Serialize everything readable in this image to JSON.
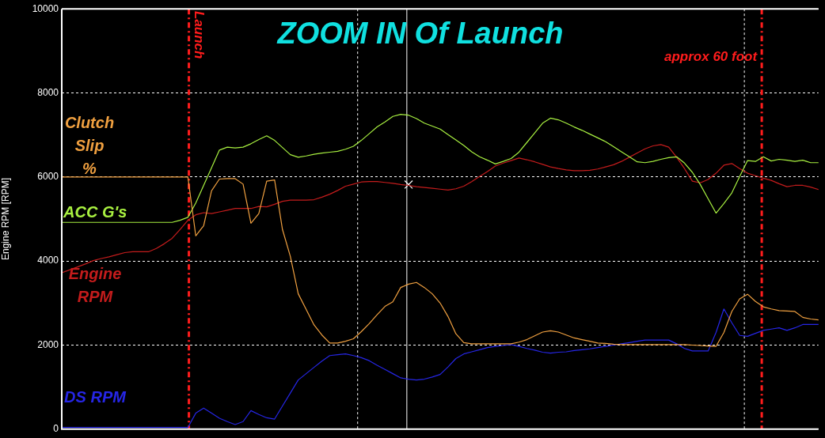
{
  "chart_data": {
    "type": "line",
    "title": "ZOOM IN Of Launch",
    "ylabel": "Engine RPM [RPM]",
    "categories": [
      null,
      null,
      null,
      null,
      null,
      null,
      null,
      null,
      null,
      null,
      null,
      null,
      null,
      null,
      null,
      null,
      null,
      null,
      null,
      null,
      null,
      null,
      null,
      null,
      null,
      null,
      null,
      null,
      null,
      null,
      null,
      null,
      null,
      null,
      null,
      null,
      null,
      null,
      null,
      null,
      null,
      null,
      null,
      null,
      null,
      null,
      null,
      null,
      null,
      null,
      null,
      null,
      null,
      null,
      null,
      null,
      null,
      null,
      null,
      null,
      null,
      null,
      null,
      null,
      null,
      null,
      null,
      null,
      null,
      null,
      null,
      null,
      null,
      null,
      null,
      null,
      null,
      null,
      null,
      null,
      null,
      null,
      null,
      null,
      null,
      null,
      null,
      null,
      null,
      null,
      null,
      null,
      null,
      null,
      null,
      null,
      null
    ],
    "ylim": [
      0,
      10000
    ],
    "yticks": [
      0,
      2000,
      4000,
      6000,
      8000,
      10000
    ],
    "grid": "y",
    "legend": false,
    "tick_labels": "y",
    "marker": "none",
    "line_style": "solid",
    "series": [
      {
        "name": "Clutch Slip %",
        "color": "#f0a040",
        "values": [
          6000,
          6000,
          6000,
          6000,
          6000,
          6000,
          6000,
          6000,
          6000,
          6000,
          6000,
          6000,
          6000,
          6000,
          6000,
          6000,
          6000,
          4600,
          4840,
          5670,
          5950,
          5960,
          5960,
          5830,
          4900,
          5130,
          5900,
          5930,
          4750,
          4110,
          3220,
          2850,
          2480,
          2240,
          2050,
          2050,
          2090,
          2150,
          2320,
          2510,
          2720,
          2920,
          3030,
          3370,
          3450,
          3490,
          3370,
          3220,
          3000,
          2680,
          2270,
          2060,
          2030,
          2030,
          2030,
          2030,
          2030,
          2030,
          2070,
          2130,
          2220,
          2310,
          2340,
          2310,
          2240,
          2170,
          2130,
          2090,
          2050,
          2040,
          2020,
          2010,
          2010,
          2010,
          2010,
          2010,
          2010,
          2010,
          2010,
          2010,
          2000,
          1990,
          1980,
          1970,
          2300,
          2800,
          3100,
          3210,
          3040,
          2910,
          2860,
          2820,
          2810,
          2800,
          2660,
          2620,
          2600
        ]
      },
      {
        "name": "ACC G's",
        "color": "#a8f040",
        "values": [
          4920,
          4920,
          4920,
          4920,
          4920,
          4920,
          4920,
          4920,
          4920,
          4920,
          4920,
          4920,
          4920,
          4920,
          4920,
          4970,
          5040,
          5380,
          5800,
          6220,
          6640,
          6710,
          6690,
          6710,
          6790,
          6890,
          6980,
          6870,
          6700,
          6530,
          6470,
          6500,
          6540,
          6570,
          6590,
          6610,
          6660,
          6730,
          6870,
          7030,
          7190,
          7310,
          7440,
          7490,
          7470,
          7390,
          7280,
          7210,
          7140,
          7010,
          6880,
          6750,
          6600,
          6480,
          6400,
          6310,
          6370,
          6440,
          6590,
          6820,
          7050,
          7280,
          7400,
          7360,
          7280,
          7190,
          7110,
          7020,
          6930,
          6840,
          6720,
          6600,
          6480,
          6360,
          6340,
          6370,
          6420,
          6460,
          6480,
          6330,
          6110,
          5820,
          5480,
          5140,
          5370,
          5620,
          6010,
          6390,
          6370,
          6480,
          6380,
          6420,
          6400,
          6370,
          6400,
          6340,
          6340
        ]
      },
      {
        "name": "Engine RPM",
        "color": "#c41c1c",
        "values": [
          3720,
          3790,
          3860,
          3930,
          4010,
          4060,
          4100,
          4150,
          4200,
          4220,
          4220,
          4220,
          4300,
          4410,
          4540,
          4750,
          4970,
          5100,
          5150,
          5130,
          5170,
          5210,
          5250,
          5250,
          5250,
          5300,
          5290,
          5350,
          5420,
          5450,
          5450,
          5450,
          5460,
          5520,
          5590,
          5680,
          5780,
          5830,
          5880,
          5890,
          5890,
          5870,
          5850,
          5820,
          5800,
          5770,
          5750,
          5730,
          5710,
          5690,
          5720,
          5780,
          5890,
          6010,
          6130,
          6260,
          6330,
          6390,
          6450,
          6410,
          6360,
          6300,
          6240,
          6200,
          6170,
          6150,
          6150,
          6160,
          6190,
          6240,
          6290,
          6370,
          6470,
          6570,
          6670,
          6740,
          6770,
          6710,
          6470,
          6200,
          5900,
          5860,
          5940,
          6090,
          6280,
          6320,
          6200,
          6090,
          6030,
          5970,
          5920,
          5840,
          5770,
          5800,
          5800,
          5760,
          5700
        ]
      },
      {
        "name": "DS RPM",
        "color": "#2626e6",
        "values": [
          40,
          40,
          40,
          40,
          40,
          40,
          40,
          40,
          40,
          40,
          40,
          40,
          40,
          40,
          40,
          40,
          40,
          380,
          500,
          380,
          260,
          180,
          110,
          180,
          440,
          350,
          270,
          240,
          550,
          860,
          1170,
          1320,
          1470,
          1620,
          1750,
          1770,
          1790,
          1750,
          1700,
          1630,
          1520,
          1420,
          1320,
          1220,
          1190,
          1170,
          1190,
          1240,
          1300,
          1480,
          1680,
          1790,
          1840,
          1890,
          1940,
          1970,
          1990,
          2010,
          1970,
          1920,
          1880,
          1830,
          1810,
          1830,
          1840,
          1870,
          1890,
          1910,
          1940,
          1970,
          2000,
          2030,
          2060,
          2090,
          2120,
          2120,
          2120,
          2120,
          2030,
          1920,
          1860,
          1860,
          1860,
          2300,
          2860,
          2530,
          2230,
          2210,
          2280,
          2350,
          2380,
          2410,
          2350,
          2410,
          2490,
          2490,
          2490
        ]
      },
      {
        "type": "scatter",
        "color": "#ffffff",
        "marker": "cross",
        "values": [
          null,
          null,
          null,
          null,
          null,
          null,
          null,
          null,
          null,
          null,
          null,
          null,
          null,
          null,
          null,
          null,
          null,
          null,
          null,
          null,
          null,
          null,
          null,
          null,
          null,
          null,
          null,
          null,
          null,
          null,
          null,
          null,
          null,
          null,
          null,
          null,
          null,
          null,
          null,
          null,
          null,
          null,
          null,
          null,
          5820,
          null,
          null,
          null,
          null,
          null,
          null,
          null,
          null,
          null,
          null,
          null,
          null,
          null,
          null,
          null,
          null,
          null,
          null,
          null,
          null,
          null,
          null,
          null,
          null,
          null,
          null,
          null,
          null,
          null,
          null,
          null,
          null,
          null,
          null,
          null,
          null,
          null,
          null,
          null,
          null,
          null,
          null,
          null,
          null,
          null,
          null,
          null,
          null,
          null,
          null,
          null,
          null
        ]
      }
    ],
    "ref_lines": [
      {
        "axis": "x",
        "label": "Launch",
        "color": "#ff1c1c",
        "line_style": "dashed"
      },
      {
        "axis": "x",
        "label": "approx 60 foot",
        "color": "#ff1c1c",
        "line_style": "dashed"
      },
      {
        "axis": "x",
        "color": "#ffffff",
        "line_style": "solid"
      },
      {
        "axis": "x",
        "color": "#ffffff",
        "line_style": "dotted"
      },
      {
        "axis": "x",
        "color": "#ffffff",
        "line_style": "dotted"
      }
    ]
  }
}
